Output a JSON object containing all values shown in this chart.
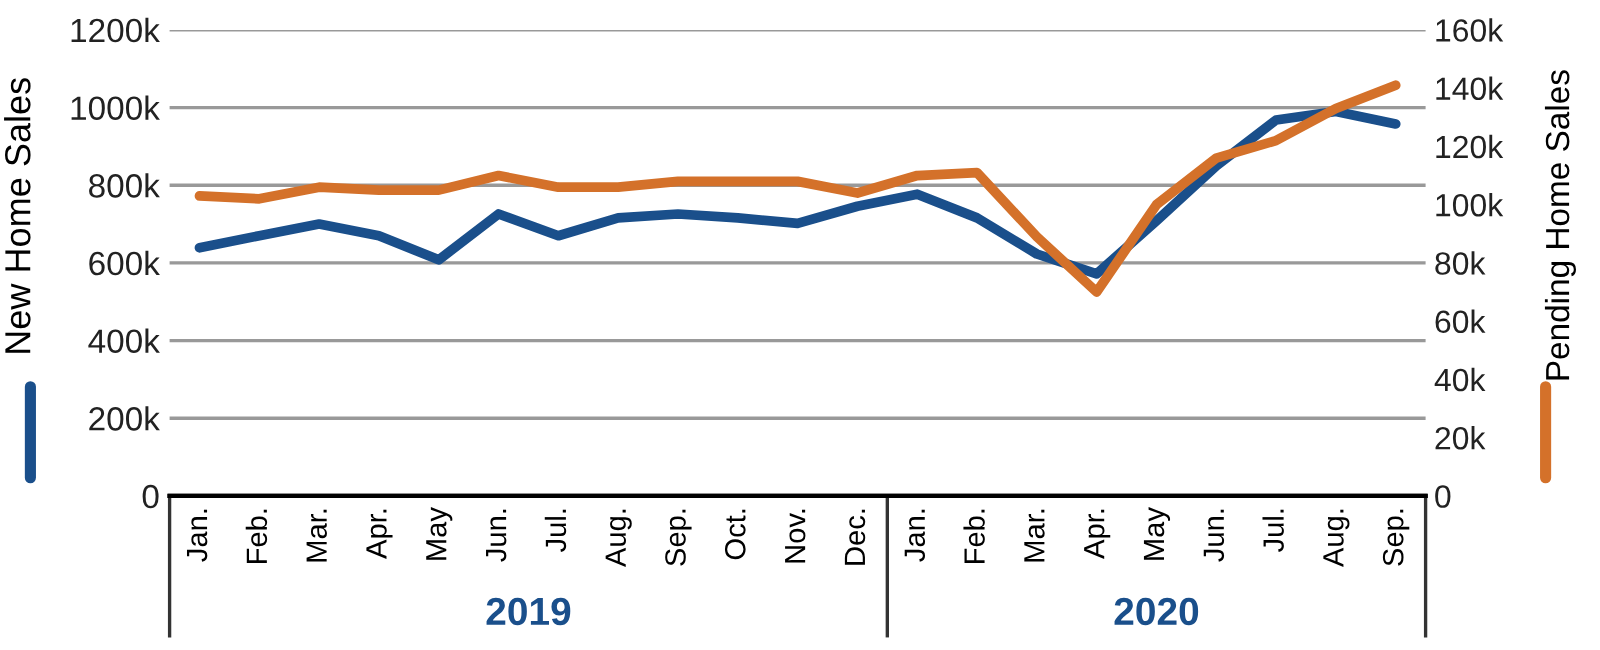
{
  "chart_data": {
    "type": "line",
    "categories": [
      "Jan.",
      "Feb.",
      "Mar.",
      "Apr.",
      "May",
      "Jun.",
      "Jul.",
      "Aug.",
      "Sep.",
      "Oct.",
      "Nov.",
      "Dec.",
      "Jan.",
      "Feb.",
      "Mar.",
      "Apr.",
      "May",
      "Jun.",
      "Jul.",
      "Aug.",
      "Sep."
    ],
    "series": [
      {
        "color": "#1a4f8b",
        "values": [
          639000,
          670000,
          700000,
          670000,
          608000,
          726000,
          670000,
          716000,
          726000,
          716000,
          702000,
          746000,
          777000,
          716000,
          623000,
          572000,
          708000,
          850000,
          968000,
          990000,
          958000
        ]
      },
      {
        "color": "#d4712a",
        "axis": "y2",
        "values": [
          103000,
          102000,
          106000,
          105000,
          105000,
          110000,
          106000,
          106000,
          108000,
          108000,
          108000,
          104000,
          110000,
          111000,
          89000,
          70000,
          100000,
          116000,
          122000,
          133000,
          141000
        ]
      }
    ],
    "ylabel": "New Home Sales",
    "y2label": "Pending Home Sales",
    "ylim": [
      0,
      1200000
    ],
    "yticks": [
      {
        "value": 0,
        "label": "0"
      },
      {
        "value": 200000,
        "label": "200k"
      },
      {
        "value": 400000,
        "label": "400k"
      },
      {
        "value": 600000,
        "label": "600k"
      },
      {
        "value": 800000,
        "label": "800k"
      },
      {
        "value": 1000000,
        "label": "1000k"
      },
      {
        "value": 1200000,
        "label": "1200k"
      }
    ],
    "y2lim": [
      0,
      160000
    ],
    "y2ticks": [
      {
        "value": 0,
        "label": "0"
      },
      {
        "value": 20000,
        "label": "20k"
      },
      {
        "value": 40000,
        "label": "40k"
      },
      {
        "value": 60000,
        "label": "60k"
      },
      {
        "value": 80000,
        "label": "80k"
      },
      {
        "value": 100000,
        "label": "100k"
      },
      {
        "value": 120000,
        "label": "120k"
      },
      {
        "value": 140000,
        "label": "140k"
      },
      {
        "value": 160000,
        "label": "160k"
      }
    ],
    "annotations": [
      "2019",
      "2020"
    ],
    "grid": "y",
    "legend": false,
    "marker": "none",
    "line_style": "solid"
  }
}
